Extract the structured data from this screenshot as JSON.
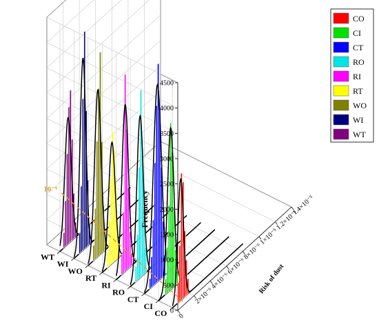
{
  "chart_data": {
    "type": "bar",
    "subtype": "3d-histogram-waterfall",
    "xlabel": "Risk of dust",
    "ylabel": "Frequency",
    "z_categories": [
      "WT",
      "WI",
      "WO",
      "RT",
      "RI",
      "RO",
      "CT",
      "CI",
      "CO"
    ],
    "x_ticks": [
      "0",
      "2×10⁻⁶",
      "4×10⁻⁶",
      "6×10⁻⁶",
      "8×10⁻⁶",
      "1×10⁻⁵",
      "1.2×10⁻⁵",
      "1.4×10⁻⁵"
    ],
    "x_tick_values": [
      0,
      2e-06,
      4e-06,
      6e-06,
      8e-06,
      1e-05,
      1.2e-05,
      1.4e-05
    ],
    "y_ticks": [
      "0",
      "500",
      "1000",
      "1500",
      "2000",
      "2500",
      "3000",
      "3500",
      "4000",
      "4500"
    ],
    "y_tick_values": [
      0,
      500,
      1000,
      1500,
      2000,
      2500,
      3000,
      3500,
      4000,
      4500
    ],
    "xlim": [
      0,
      1.4e-05
    ],
    "ylim": [
      0,
      4500
    ],
    "grid": true,
    "legend_position": "top-right",
    "reference_line": {
      "label": "10⁻⁶",
      "x": 1e-06,
      "color": "#e69a2e"
    },
    "bin_width": 2e-07,
    "series": [
      {
        "name": "CO",
        "color": "#ff0000",
        "mode": 1e-06,
        "peak": 2400,
        "spread": 3.5e-07,
        "bins": [
          [
            "6e-7",
            400
          ],
          [
            "8e-7",
            1100
          ],
          [
            "1e-6",
            2500
          ],
          [
            "1.2e-6",
            2300
          ],
          [
            "1.4e-6",
            1300
          ],
          [
            "1.6e-6",
            700
          ],
          [
            "1.8e-6",
            300
          ]
        ]
      },
      {
        "name": "CI",
        "color": "#00e000",
        "mode": 1.5e-06,
        "peak": 3200,
        "spread": 4e-07,
        "bins": [
          [
            "8e-7",
            300
          ],
          [
            "1e-6",
            900
          ],
          [
            "1.2e-6",
            1700
          ],
          [
            "1.4e-6",
            3300
          ],
          [
            "1.6e-6",
            2700
          ],
          [
            "1.8e-6",
            1500
          ],
          [
            "2e-6",
            700
          ],
          [
            "2.2e-6",
            250
          ]
        ]
      },
      {
        "name": "CT",
        "color": "#0000ff",
        "mode": 1.6e-06,
        "peak": 3900,
        "spread": 5e-07,
        "bins": [
          [
            "6e-7",
            200
          ],
          [
            "8e-7",
            600
          ],
          [
            "1e-6",
            1300
          ],
          [
            "1.2e-6",
            2400
          ],
          [
            "1.4e-6",
            3500
          ],
          [
            "1.6e-6",
            4300
          ],
          [
            "1.8e-6",
            3400
          ],
          [
            "2e-6",
            2200
          ],
          [
            "2.2e-6",
            1100
          ],
          [
            "2.4e-6",
            400
          ]
        ]
      },
      {
        "name": "RO",
        "color": "#00e5e5",
        "mode": 1.2e-06,
        "peak": 3200,
        "spread": 4e-07,
        "bins": [
          [
            "6e-7",
            300
          ],
          [
            "8e-7",
            900
          ],
          [
            "1e-6",
            2200
          ],
          [
            "1.2e-6",
            3700
          ],
          [
            "1.4e-6",
            2500
          ],
          [
            "1.6e-6",
            1300
          ],
          [
            "1.8e-6",
            500
          ]
        ]
      },
      {
        "name": "RI",
        "color": "#ff00ff",
        "mode": 1.1e-06,
        "peak": 3300,
        "spread": 4e-07,
        "bins": [
          [
            "6e-7",
            400
          ],
          [
            "8e-7",
            1200
          ],
          [
            "1e-6",
            3900
          ],
          [
            "1.2e-6",
            2800
          ],
          [
            "1.4e-6",
            1600
          ],
          [
            "1.6e-6",
            700
          ],
          [
            "1.8e-6",
            250
          ]
        ]
      },
      {
        "name": "RT",
        "color": "#ffff00",
        "mode": 1.2e-06,
        "peak": 2400,
        "spread": 4e-07,
        "bins": [
          [
            "6e-7",
            300
          ],
          [
            "8e-7",
            900
          ],
          [
            "1e-6",
            1700
          ],
          [
            "1.2e-6",
            2600
          ],
          [
            "1.4e-6",
            2200
          ],
          [
            "1.6e-6",
            1400
          ],
          [
            "1.8e-6",
            600
          ],
          [
            "2e-6",
            200
          ]
        ]
      },
      {
        "name": "WO",
        "color": "#808000",
        "mode": 1.2e-06,
        "peak": 3300,
        "spread": 4e-07,
        "bins": [
          [
            "6e-7",
            300
          ],
          [
            "8e-7",
            1000
          ],
          [
            "1e-6",
            2300
          ],
          [
            "1.2e-6",
            3300
          ],
          [
            "1.4e-6",
            4000
          ],
          [
            "1.6e-6",
            2200
          ],
          [
            "1.8e-6",
            900
          ],
          [
            "2e-6",
            300
          ]
        ]
      },
      {
        "name": "WI",
        "color": "#000080",
        "mode": 1.1e-06,
        "peak": 3800,
        "spread": 3.5e-07,
        "bins": [
          [
            "6e-7",
            400
          ],
          [
            "8e-7",
            1300
          ],
          [
            "1e-6",
            3000
          ],
          [
            "1.2e-6",
            4300
          ],
          [
            "1.4e-6",
            2700
          ],
          [
            "1.6e-6",
            1300
          ],
          [
            "1.8e-6",
            400
          ]
        ]
      },
      {
        "name": "WT",
        "color": "#800080",
        "mode": 1e-06,
        "peak": 2500,
        "spread": 4e-07,
        "bins": [
          [
            "4e-7",
            300
          ],
          [
            "6e-7",
            900
          ],
          [
            "8e-7",
            1800
          ],
          [
            "1e-6",
            2700
          ],
          [
            "1.2e-6",
            3000
          ],
          [
            "1.4e-6",
            2000
          ],
          [
            "1.6e-6",
            900
          ],
          [
            "1.8e-6",
            300
          ]
        ]
      }
    ]
  }
}
